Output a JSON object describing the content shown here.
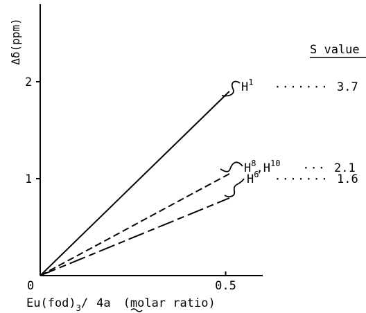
{
  "chart_data": {
    "type": "line",
    "title": "",
    "ylabel": "Δδ(ppm)",
    "xlabel": {
      "main": "Eu(fod)",
      "subscript": "3",
      "slash": "/",
      "compound": "4a",
      "units": "(molar ratio)"
    },
    "xlim": [
      0,
      0.6
    ],
    "ylim": [
      0,
      2.8
    ],
    "x_ticks": [
      {
        "value": 0,
        "label": "0"
      },
      {
        "value": 0.5,
        "label": "0.5"
      }
    ],
    "y_ticks": [
      {
        "value": 1,
        "label": "1"
      },
      {
        "value": 2,
        "label": "2"
      }
    ],
    "s_value_header": "S value",
    "series": [
      {
        "name": "H1",
        "label_main": "H",
        "label_sup": "1",
        "label_tail": "",
        "dots": "·······",
        "s_value": "3.7",
        "style": "solid",
        "x": [
          0,
          0.51
        ],
        "y": [
          0,
          1.9
        ]
      },
      {
        "name": "H8,H10",
        "label_main": "H",
        "label_sup": "8",
        "label_tail": ",H",
        "label_sup2": "10",
        "dots": "···",
        "s_value": "2.1",
        "style": "dashed",
        "x": [
          0,
          0.51
        ],
        "y": [
          0,
          1.05
        ]
      },
      {
        "name": "H6",
        "label_main": "H",
        "label_sup": "6",
        "label_tail": "",
        "dots": "·······",
        "s_value": "1.6",
        "style": "longdash",
        "x": [
          0,
          0.51
        ],
        "y": [
          0,
          0.8
        ]
      }
    ]
  }
}
